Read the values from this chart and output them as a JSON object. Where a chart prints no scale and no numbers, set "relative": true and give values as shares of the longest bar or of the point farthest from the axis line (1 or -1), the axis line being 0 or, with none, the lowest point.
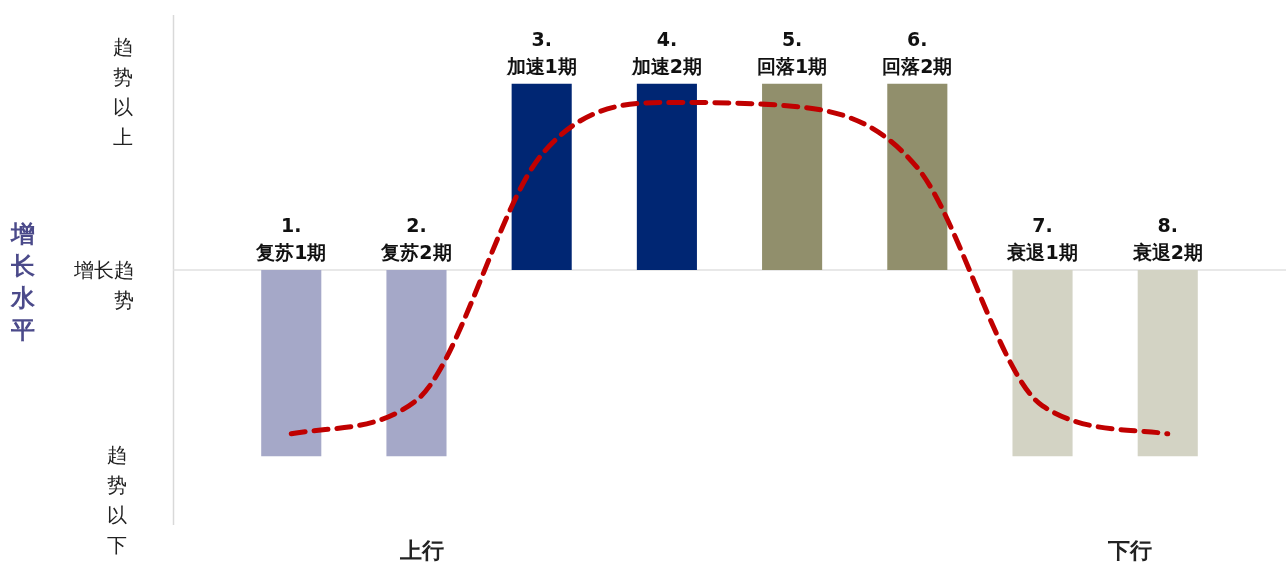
{
  "chart_data": {
    "type": "bar",
    "relative": true,
    "categories": [
      "1.\n复苏1期",
      "2.\n复苏2期",
      "3.\n加速1期",
      "4.\n加速2期",
      "5.\n回落1期",
      "6.\n回落2期",
      "7.\n衰退1期",
      "8.\n衰退2期"
    ],
    "values": [
      -1,
      -1,
      1,
      1,
      1,
      1,
      -1,
      -1
    ],
    "colors": [
      "#a5a8c8",
      "#a5a8c8",
      "#002673",
      "#002673",
      "#918f6c",
      "#918f6c",
      "#d3d3c4",
      "#d3d3c4"
    ],
    "series": [
      {
        "type": "line",
        "color": "#c00000",
        "line_style": "dashed",
        "marker": "none",
        "values": [
          -0.88,
          -0.7,
          0.62,
          0.9,
          0.88,
          0.55,
          -0.73,
          -0.88
        ]
      }
    ],
    "annotations": [
      "趋势以上",
      "增长趋势",
      "趋势以下",
      "上行",
      "下行",
      "增长水平"
    ],
    "legend": false
  }
}
